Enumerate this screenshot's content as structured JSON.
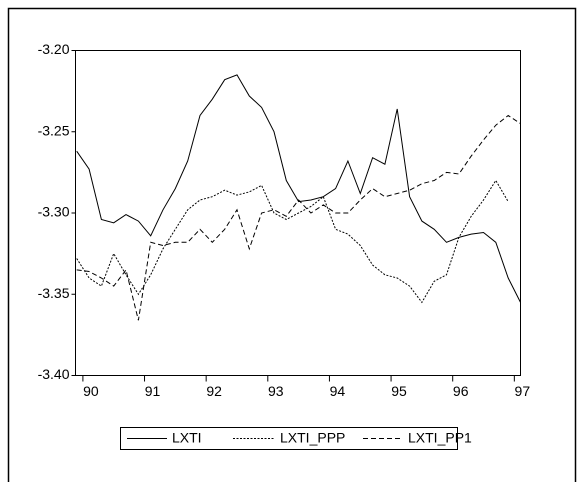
{
  "chart_data": {
    "type": "line",
    "x": [
      89.9,
      90.1,
      90.3,
      90.5,
      90.7,
      90.9,
      91.1,
      91.3,
      91.5,
      91.7,
      91.9,
      92.1,
      92.3,
      92.5,
      92.7,
      92.9,
      93.1,
      93.3,
      93.5,
      93.7,
      93.9,
      94.1,
      94.3,
      94.5,
      94.7,
      94.9,
      95.1,
      95.3,
      95.5,
      95.7,
      95.9,
      96.1,
      96.3,
      96.5,
      96.7,
      96.9,
      97.1
    ],
    "series": [
      {
        "name": "LXTI",
        "color": "#000000",
        "dash": "solid",
        "values": [
          -3.262,
          -3.273,
          -3.304,
          -3.306,
          -3.301,
          -3.305,
          -3.314,
          -3.298,
          -3.285,
          -3.268,
          -3.24,
          -3.23,
          -3.218,
          -3.215,
          -3.228,
          -3.235,
          -3.25,
          -3.28,
          -3.293,
          -3.292,
          -3.29,
          -3.285,
          -3.268,
          -3.288,
          -3.266,
          -3.27,
          -3.236,
          -3.29,
          -3.305,
          -3.31,
          -3.318,
          -3.315,
          -3.313,
          -3.312,
          -3.318,
          -3.34,
          -3.355
        ]
      },
      {
        "name": "LXTI_PPP",
        "color": "#000000",
        "dash": "dotted",
        "values": [
          -3.328,
          -3.34,
          -3.345,
          -3.325,
          -3.338,
          -3.35,
          -3.338,
          -3.322,
          -3.31,
          -3.298,
          -3.292,
          -3.29,
          -3.286,
          -3.289,
          -3.287,
          -3.283,
          -3.3,
          -3.304,
          -3.3,
          -3.296,
          -3.29,
          -3.31,
          -3.313,
          -3.32,
          -3.332,
          -3.338,
          -3.34,
          -3.345,
          -3.355,
          -3.342,
          -3.338,
          -3.315,
          -3.302,
          -3.292,
          -3.28,
          -3.293,
          null
        ]
      },
      {
        "name": "LXTI_PP1",
        "color": "#000000",
        "dash": "dashed",
        "values": [
          -3.335,
          -3.336,
          -3.34,
          -3.345,
          -3.335,
          -3.366,
          -3.318,
          -3.32,
          -3.318,
          -3.318,
          -3.31,
          -3.318,
          -3.31,
          -3.298,
          -3.322,
          -3.3,
          -3.298,
          -3.302,
          -3.292,
          -3.3,
          -3.295,
          -3.3,
          -3.3,
          -3.292,
          -3.285,
          -3.29,
          -3.288,
          -3.286,
          -3.282,
          -3.28,
          -3.275,
          -3.276,
          -3.265,
          -3.255,
          -3.246,
          -3.24,
          -3.245
        ]
      }
    ],
    "xlim": [
      89.88,
      97.1
    ],
    "xticks": [
      90,
      91,
      92,
      93,
      94,
      95,
      96,
      97
    ],
    "ylim": [
      -3.4,
      -3.2
    ],
    "yticks": [
      {
        "value": -3.4,
        "label": "-3.40"
      },
      {
        "value": -3.35,
        "label": "-3.35"
      },
      {
        "value": -3.3,
        "label": "-3.30"
      },
      {
        "value": -3.25,
        "label": "-3.25"
      },
      {
        "value": -3.2,
        "label": "-3.20"
      }
    ],
    "grid": false,
    "legend": "bottom"
  }
}
